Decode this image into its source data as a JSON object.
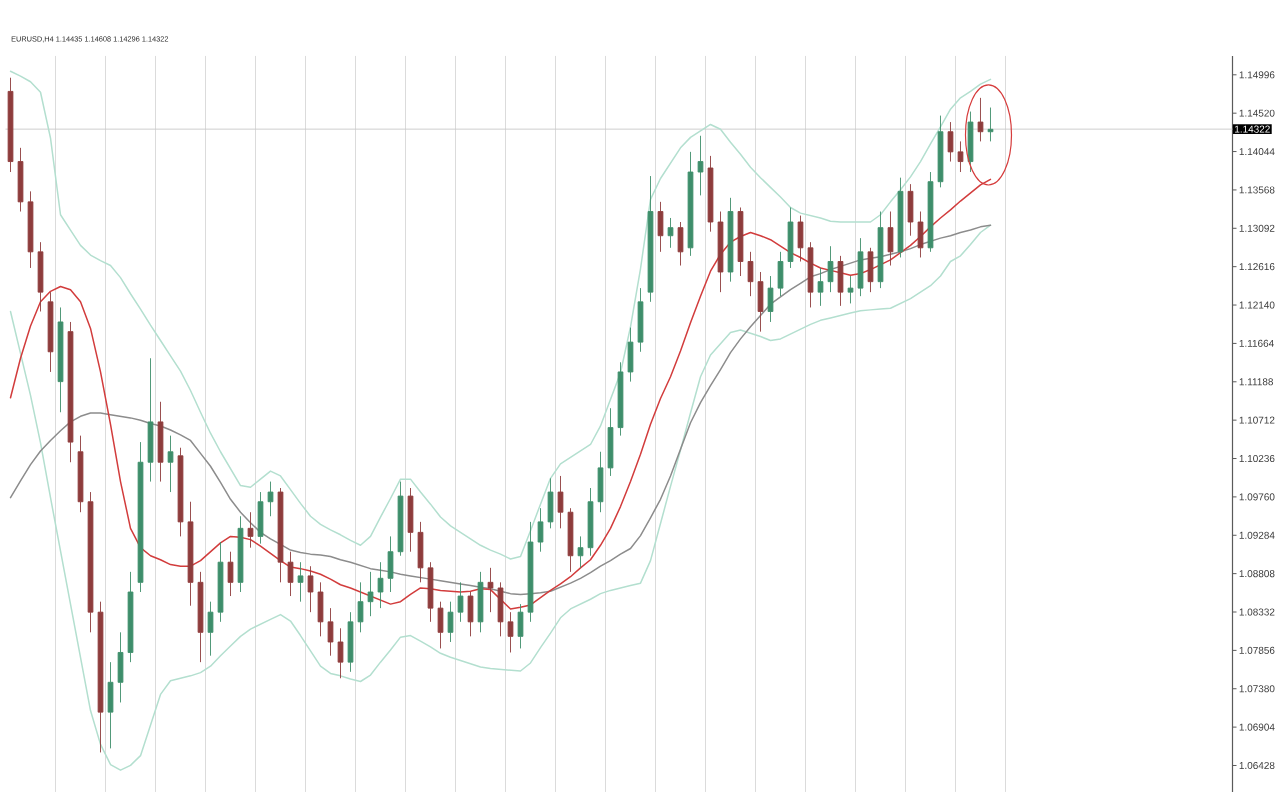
{
  "chart_data": {
    "type": "candlestick",
    "title": "EURUSD,H4 1.14435 1.14608 1.14296 1.14322",
    "categories": [
      null,
      null,
      null,
      null,
      null,
      null,
      null,
      null,
      null,
      null,
      null,
      null,
      null,
      null,
      null,
      null,
      null,
      null,
      null,
      null,
      null,
      null,
      null,
      null,
      null,
      null,
      null,
      null,
      null,
      null,
      null,
      null,
      null,
      null,
      null,
      null,
      null,
      null,
      null,
      null,
      null,
      null,
      null,
      null,
      null,
      null,
      null,
      null,
      null,
      null,
      null,
      null,
      null,
      null,
      null,
      null,
      null,
      null,
      null,
      null,
      null,
      null,
      null,
      null,
      null,
      null,
      null,
      null,
      null,
      null,
      null,
      null,
      null,
      null,
      null,
      null,
      null,
      null,
      null,
      null,
      null,
      null,
      null,
      null,
      null,
      null,
      null,
      null,
      null,
      null,
      null,
      null,
      null,
      null,
      null,
      null,
      null,
      null,
      null
    ],
    "ohlc": [
      [
        1.1479,
        1.1496,
        1.1379,
        1.1392
      ],
      [
        1.1392,
        1.1409,
        1.133,
        1.1342
      ],
      [
        1.1342,
        1.1355,
        1.126,
        1.128
      ],
      [
        1.128,
        1.1292,
        1.1206,
        1.123
      ],
      [
        1.1218,
        1.123,
        1.1131,
        1.1156
      ],
      [
        1.1119,
        1.1211,
        1.1081,
        1.1193
      ],
      [
        1.1181,
        1.1193,
        1.1019,
        1.1044
      ],
      [
        1.1032,
        1.1052,
        1.0957,
        1.097
      ],
      [
        1.097,
        1.0982,
        1.0808,
        1.0833
      ],
      [
        1.0833,
        1.0846,
        1.0659,
        1.0709
      ],
      [
        1.0709,
        1.0771,
        1.0664,
        1.0746
      ],
      [
        1.0746,
        1.0808,
        1.0721,
        1.0783
      ],
      [
        1.0783,
        1.0883,
        1.0771,
        1.0858
      ],
      [
        1.087,
        1.1044,
        1.0858,
        1.1019
      ],
      [
        1.1019,
        1.1148,
        1.0995,
        1.1069
      ],
      [
        1.1069,
        1.1094,
        1.0995,
        1.1019
      ],
      [
        1.1019,
        1.1052,
        1.0982,
        1.1032
      ],
      [
        1.1027,
        1.1037,
        1.0927,
        1.0945
      ],
      [
        1.0945,
        1.097,
        1.0841,
        1.087
      ],
      [
        1.087,
        1.0883,
        1.0771,
        1.0808
      ],
      [
        1.0808,
        1.0846,
        1.0779,
        1.0833
      ],
      [
        1.0833,
        1.092,
        1.0821,
        1.0895
      ],
      [
        1.0895,
        1.0908,
        1.0853,
        1.087
      ],
      [
        1.087,
        1.0952,
        1.0858,
        1.0937
      ],
      [
        1.0937,
        1.0957,
        1.0913,
        1.0927
      ],
      [
        1.0927,
        1.0982,
        1.0918,
        1.097
      ],
      [
        1.097,
        1.0995,
        1.0952,
        1.0982
      ],
      [
        1.0982,
        1.0987,
        1.087,
        1.0895
      ],
      [
        1.0895,
        1.0908,
        1.0853,
        1.087
      ],
      [
        1.087,
        1.0895,
        1.0846,
        1.0878
      ],
      [
        1.0878,
        1.089,
        1.0833,
        1.0858
      ],
      [
        1.0858,
        1.087,
        1.0803,
        1.0821
      ],
      [
        1.0821,
        1.0838,
        1.0779,
        1.0796
      ],
      [
        1.0796,
        1.0813,
        1.0751,
        1.0771
      ],
      [
        1.0771,
        1.0833,
        1.0759,
        1.0821
      ],
      [
        1.0821,
        1.087,
        1.0808,
        1.0846
      ],
      [
        1.0846,
        1.0883,
        1.0828,
        1.0858
      ],
      [
        1.0858,
        1.0895,
        1.0838,
        1.0875
      ],
      [
        1.0875,
        1.0927,
        1.0858,
        1.0908
      ],
      [
        1.0908,
        1.0995,
        1.0903,
        1.0977
      ],
      [
        1.0977,
        1.0987,
        1.0908,
        1.0932
      ],
      [
        1.0932,
        1.0945,
        1.087,
        1.0888
      ],
      [
        1.0888,
        1.0895,
        1.0821,
        1.0838
      ],
      [
        1.0838,
        1.0846,
        1.0788,
        1.0808
      ],
      [
        1.0808,
        1.0846,
        1.0796,
        1.0833
      ],
      [
        1.0833,
        1.087,
        1.0821,
        1.0853
      ],
      [
        1.0853,
        1.0858,
        1.0803,
        1.0821
      ],
      [
        1.0821,
        1.0883,
        1.0808,
        1.087
      ],
      [
        1.087,
        1.0888,
        1.0833,
        1.0863
      ],
      [
        1.0863,
        1.087,
        1.0803,
        1.0821
      ],
      [
        1.0821,
        1.0833,
        1.0783,
        1.0803
      ],
      [
        1.0803,
        1.0843,
        1.0788,
        1.0833
      ],
      [
        1.0833,
        1.0945,
        1.0821,
        1.092
      ],
      [
        1.092,
        1.0962,
        1.0908,
        1.0945
      ],
      [
        1.0945,
        1.0999,
        1.0937,
        1.0982
      ],
      [
        1.0982,
        1.1002,
        1.0937,
        1.0957
      ],
      [
        1.0957,
        1.0962,
        1.0883,
        1.0903
      ],
      [
        1.0903,
        1.0927,
        1.0888,
        1.0913
      ],
      [
        1.0913,
        1.0987,
        1.0903,
        1.097
      ],
      [
        1.097,
        1.1032,
        1.0957,
        1.1012
      ],
      [
        1.1012,
        1.1086,
        1.1002,
        1.1062
      ],
      [
        1.1062,
        1.1143,
        1.1052,
        1.1131
      ],
      [
        1.1131,
        1.1186,
        1.1119,
        1.1168
      ],
      [
        1.1168,
        1.1235,
        1.1156,
        1.1218
      ],
      [
        1.123,
        1.1374,
        1.1218,
        1.133
      ],
      [
        1.133,
        1.1342,
        1.128,
        1.13
      ],
      [
        1.13,
        1.1322,
        1.1285,
        1.131
      ],
      [
        1.131,
        1.1317,
        1.1263,
        1.128
      ],
      [
        1.1285,
        1.1404,
        1.1275,
        1.1379
      ],
      [
        1.1379,
        1.1424,
        1.135,
        1.1392
      ],
      [
        1.1384,
        1.1399,
        1.1305,
        1.1317
      ],
      [
        1.1317,
        1.133,
        1.123,
        1.1255
      ],
      [
        1.1255,
        1.1347,
        1.1243,
        1.133
      ],
      [
        1.133,
        1.1335,
        1.125,
        1.1268
      ],
      [
        1.1268,
        1.128,
        1.1225,
        1.1243
      ],
      [
        1.1243,
        1.1255,
        1.1181,
        1.1206
      ],
      [
        1.1206,
        1.125,
        1.1193,
        1.1235
      ],
      [
        1.1235,
        1.128,
        1.1225,
        1.1268
      ],
      [
        1.1268,
        1.1335,
        1.126,
        1.1317
      ],
      [
        1.1317,
        1.1325,
        1.1268,
        1.1285
      ],
      [
        1.1285,
        1.1292,
        1.1211,
        1.123
      ],
      [
        1.123,
        1.126,
        1.1213,
        1.1243
      ],
      [
        1.1243,
        1.1287,
        1.123,
        1.1268
      ],
      [
        1.1268,
        1.1275,
        1.1213,
        1.123
      ],
      [
        1.123,
        1.125,
        1.1216,
        1.1235
      ],
      [
        1.1235,
        1.1297,
        1.1225,
        1.128
      ],
      [
        1.128,
        1.1285,
        1.123,
        1.1243
      ],
      [
        1.1243,
        1.133,
        1.1235,
        1.131
      ],
      [
        1.131,
        1.133,
        1.1263,
        1.128
      ],
      [
        1.128,
        1.1372,
        1.1273,
        1.1355
      ],
      [
        1.1355,
        1.1364,
        1.13,
        1.1317
      ],
      [
        1.1317,
        1.133,
        1.1273,
        1.1285
      ],
      [
        1.1285,
        1.1379,
        1.128,
        1.1367
      ],
      [
        1.1367,
        1.1449,
        1.136,
        1.1429
      ],
      [
        1.1429,
        1.1441,
        1.1392,
        1.1404
      ],
      [
        1.1404,
        1.1417,
        1.1379,
        1.1392
      ],
      [
        1.1392,
        1.1454,
        1.1379,
        1.1441
      ],
      [
        1.1441,
        1.1471,
        1.1417,
        1.1429
      ],
      [
        1.1429,
        1.1459,
        1.1417,
        1.1432
      ]
    ],
    "colors": [
      "#8e3c3c",
      "#8e3c3c",
      "#8e3c3c",
      "#8e3c3c",
      "#8e3c3c",
      "#3e8e6b",
      "#8e3c3c",
      "#8e3c3c",
      "#8e3c3c",
      "#8e3c3c",
      "#3e8e6b",
      "#3e8e6b",
      "#3e8e6b",
      "#3e8e6b",
      "#3e8e6b",
      "#8e3c3c",
      "#3e8e6b",
      "#8e3c3c",
      "#8e3c3c",
      "#8e3c3c",
      "#3e8e6b",
      "#3e8e6b",
      "#8e3c3c",
      "#3e8e6b",
      "#8e3c3c",
      "#3e8e6b",
      "#3e8e6b",
      "#8e3c3c",
      "#8e3c3c",
      "#3e8e6b",
      "#8e3c3c",
      "#8e3c3c",
      "#8e3c3c",
      "#8e3c3c",
      "#3e8e6b",
      "#3e8e6b",
      "#3e8e6b",
      "#3e8e6b",
      "#3e8e6b",
      "#3e8e6b",
      "#8e3c3c",
      "#8e3c3c",
      "#8e3c3c",
      "#8e3c3c",
      "#3e8e6b",
      "#3e8e6b",
      "#8e3c3c",
      "#3e8e6b",
      "#8e3c3c",
      "#8e3c3c",
      "#8e3c3c",
      "#3e8e6b",
      "#3e8e6b",
      "#3e8e6b",
      "#3e8e6b",
      "#8e3c3c",
      "#8e3c3c",
      "#3e8e6b",
      "#3e8e6b",
      "#3e8e6b",
      "#3e8e6b",
      "#3e8e6b",
      "#3e8e6b",
      "#3e8e6b",
      "#3e8e6b",
      "#8e3c3c",
      "#3e8e6b",
      "#8e3c3c",
      "#3e8e6b",
      "#3e8e6b",
      "#8e3c3c",
      "#8e3c3c",
      "#3e8e6b",
      "#8e3c3c",
      "#8e3c3c",
      "#8e3c3c",
      "#3e8e6b",
      "#3e8e6b",
      "#3e8e6b",
      "#8e3c3c",
      "#8e3c3c",
      "#3e8e6b",
      "#3e8e6b",
      "#8e3c3c",
      "#3e8e6b",
      "#3e8e6b",
      "#8e3c3c",
      "#3e8e6b",
      "#8e3c3c",
      "#3e8e6b",
      "#8e3c3c",
      "#8e3c3c",
      "#3e8e6b",
      "#3e8e6b",
      "#8e3c3c",
      "#8e3c3c",
      "#3e8e6b",
      "#8e3c3c",
      "#3e8e6b"
    ],
    "series": [
      {
        "type": "line",
        "color": "#b3dfcf",
        "values": [
          1.1504,
          1.1498,
          1.1491,
          1.1478,
          1.1421,
          1.1326,
          1.1307,
          1.1288,
          1.1276,
          1.1269,
          1.1263,
          1.1248,
          1.1228,
          1.1209,
          1.1189,
          1.117,
          1.1151,
          1.1132,
          1.1108,
          1.1081,
          1.1055,
          1.1032,
          1.1011,
          1.099,
          1.0988,
          1.0998,
          1.1008,
          1.1002,
          1.0985,
          1.0968,
          1.0952,
          1.0942,
          1.0935,
          1.0929,
          1.0922,
          1.0916,
          1.0927,
          1.0951,
          1.0974,
          1.0998,
          1.0998,
          1.0982,
          1.0967,
          1.0951,
          1.094,
          1.0932,
          1.0924,
          1.0916,
          1.091,
          1.0905,
          1.0899,
          1.0902,
          1.0934,
          1.0967,
          1.0999,
          1.1017,
          1.1025,
          1.1033,
          1.1041,
          1.1064,
          1.1097,
          1.113,
          1.1187,
          1.1259,
          1.1345,
          1.1371,
          1.139,
          1.1409,
          1.1422,
          1.143,
          1.1438,
          1.1432,
          1.1416,
          1.1401,
          1.1385,
          1.1372,
          1.136,
          1.1348,
          1.1335,
          1.1328,
          1.1325,
          1.1322,
          1.1318,
          1.1317,
          1.1317,
          1.1317,
          1.1317,
          1.1326,
          1.1342,
          1.1357,
          1.1373,
          1.1392,
          1.1414,
          1.1435,
          1.1457,
          1.1471,
          1.1479,
          1.1488,
          1.1494
        ]
      },
      {
        "type": "line",
        "color": "#b3dfcf",
        "values": [
          1.1206,
          1.1154,
          1.1102,
          1.1043,
          1.0975,
          1.0909,
          1.0843,
          1.0777,
          1.0711,
          1.0669,
          1.0644,
          1.0637,
          1.0643,
          1.0655,
          1.0693,
          1.0731,
          1.0748,
          1.0751,
          1.0754,
          1.0758,
          1.0766,
          1.0779,
          1.0791,
          1.0803,
          1.0812,
          1.0818,
          1.0824,
          1.083,
          1.0822,
          1.0804,
          1.0785,
          1.0766,
          1.0757,
          1.0754,
          1.075,
          1.0747,
          1.0755,
          1.0771,
          1.0786,
          1.0802,
          1.0804,
          1.0797,
          1.079,
          1.0782,
          1.0777,
          1.0773,
          1.0769,
          1.0765,
          1.0763,
          1.0762,
          1.0761,
          1.076,
          1.077,
          1.0789,
          1.0807,
          1.0826,
          1.0837,
          1.0843,
          1.0849,
          1.0856,
          1.086,
          1.0863,
          1.0866,
          1.0869,
          1.0897,
          1.0943,
          1.0989,
          1.1034,
          1.108,
          1.1125,
          1.1152,
          1.1166,
          1.118,
          1.1183,
          1.1179,
          1.1175,
          1.117,
          1.1172,
          1.1178,
          1.1184,
          1.119,
          1.1195,
          1.1198,
          1.1201,
          1.1204,
          1.1207,
          1.1208,
          1.1209,
          1.121,
          1.1216,
          1.1222,
          1.123,
          1.1238,
          1.125,
          1.1268,
          1.1275,
          1.1289,
          1.1304,
          1.1313
        ]
      },
      {
        "type": "line",
        "color": "#8c8c8c",
        "values": [
          1.0975,
          1.0996,
          1.1016,
          1.1033,
          1.1046,
          1.1058,
          1.1069,
          1.1076,
          1.108,
          1.108,
          1.1078,
          1.1076,
          1.1074,
          1.1071,
          1.1067,
          1.1064,
          1.1059,
          1.1053,
          1.1046,
          1.103,
          1.1014,
          1.0994,
          1.0973,
          1.0957,
          1.0944,
          1.0932,
          1.0924,
          1.0917,
          1.091,
          1.0907,
          1.0905,
          1.0904,
          1.0902,
          1.0898,
          1.0895,
          1.0891,
          1.0887,
          1.0885,
          1.0883,
          1.088,
          1.0878,
          1.0876,
          1.0874,
          1.0872,
          1.087,
          1.0868,
          1.0866,
          1.0864,
          1.0862,
          1.0859,
          1.0856,
          1.0855,
          1.0856,
          1.0857,
          1.0859,
          1.0864,
          1.0869,
          1.0875,
          1.0882,
          1.089,
          1.0897,
          1.0905,
          1.0912,
          1.0928,
          1.095,
          1.0973,
          1.1002,
          1.1035,
          1.1068,
          1.1093,
          1.1114,
          1.1134,
          1.1155,
          1.1172,
          1.1187,
          1.1201,
          1.1215,
          1.1224,
          1.1233,
          1.1241,
          1.1249,
          1.1253,
          1.1258,
          1.1262,
          1.1266,
          1.127,
          1.1272,
          1.1274,
          1.1277,
          1.128,
          1.1284,
          1.1289,
          1.1293,
          1.1297,
          1.13,
          1.1304,
          1.1307,
          1.1311,
          1.1313
        ]
      },
      {
        "type": "line",
        "color": "#d23c3c",
        "values": [
          1.1099,
          1.1148,
          1.1188,
          1.1218,
          1.1231,
          1.1237,
          1.1233,
          1.1218,
          1.1185,
          1.1131,
          1.1066,
          1.0995,
          1.0937,
          1.0913,
          1.0903,
          1.0898,
          1.0892,
          1.089,
          1.089,
          1.0897,
          1.0908,
          1.0919,
          1.0927,
          1.0926,
          1.0923,
          1.0915,
          1.0906,
          1.0897,
          1.0889,
          1.0887,
          1.0884,
          1.088,
          1.0874,
          1.0867,
          1.0863,
          1.0858,
          1.0853,
          1.0848,
          1.0843,
          1.0846,
          1.0855,
          1.0863,
          1.0862,
          1.086,
          1.0859,
          1.0858,
          1.0859,
          1.0862,
          1.0861,
          1.0849,
          1.0837,
          1.0839,
          1.0842,
          1.0851,
          1.086,
          1.0868,
          1.0877,
          1.0888,
          1.0898,
          1.0916,
          1.0937,
          1.0964,
          1.0995,
          1.1029,
          1.1066,
          1.1098,
          1.1125,
          1.1157,
          1.1192,
          1.1225,
          1.1256,
          1.1277,
          1.1292,
          1.1299,
          1.1304,
          1.13,
          1.1295,
          1.1287,
          1.1279,
          1.1273,
          1.1266,
          1.126,
          1.1257,
          1.1254,
          1.1251,
          1.1253,
          1.1258,
          1.1264,
          1.127,
          1.1279,
          1.1288,
          1.1299,
          1.1311,
          1.1322,
          1.1332,
          1.1343,
          1.1353,
          1.1363,
          1.137
        ]
      }
    ],
    "ylim": [
      1.061,
      1.1523
    ],
    "yticks": [
      1.14996,
      {
        "value": 1.1452,
        "label": "1.14520"
      },
      1.14044,
      1.13568,
      1.13092,
      1.12616,
      {
        "value": 1.1214,
        "label": "1.12140"
      },
      1.11664,
      1.11188,
      1.10712,
      1.10236,
      {
        "value": 1.0976,
        "label": "1.09760"
      },
      1.09284,
      1.08808,
      1.08332,
      1.07856,
      {
        "value": 1.0738,
        "label": "1.07380"
      },
      1.06904,
      1.06428
    ],
    "tick_labels": "y",
    "ref_lines": [
      {
        "axis": "y",
        "value": 1.14322,
        "label": "1.14322",
        "color": "#c8c8c8"
      }
    ]
  }
}
